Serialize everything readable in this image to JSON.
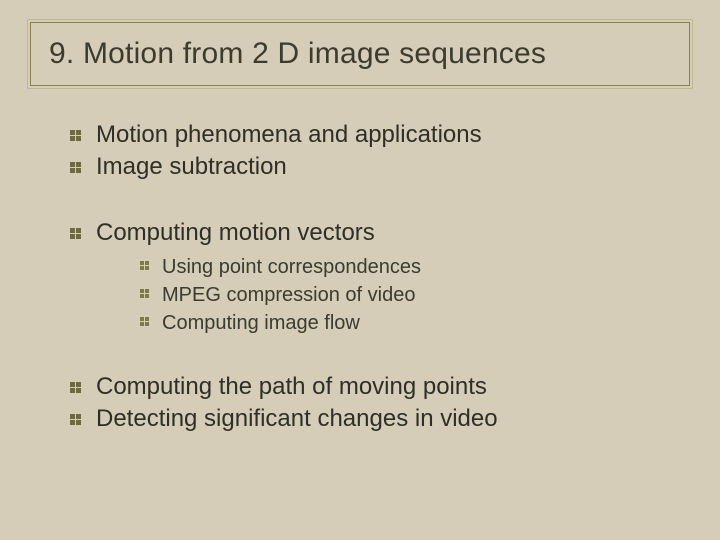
{
  "slide": {
    "background_color": "#d5cdb7",
    "text_color": "#2f2f27",
    "font_family": "Arial",
    "title": {
      "text": "9.  Motion from 2 D image sequences",
      "fontsize": 30,
      "border_color_outer": "#c0b98f",
      "border_color_inner": "#8a8050"
    },
    "bullets": {
      "level1_fontsize": 24,
      "level2_fontsize": 20,
      "bullet_color": "#6f693f",
      "group1": [
        "Motion phenomena and applications",
        "Image subtraction"
      ],
      "group2_parent": "Computing motion vectors",
      "group2_children": [
        "Using point correspondences",
        "MPEG compression of video",
        "Computing image flow"
      ],
      "group3": [
        "Computing the path of moving points",
        "Detecting significant changes in video"
      ]
    }
  }
}
